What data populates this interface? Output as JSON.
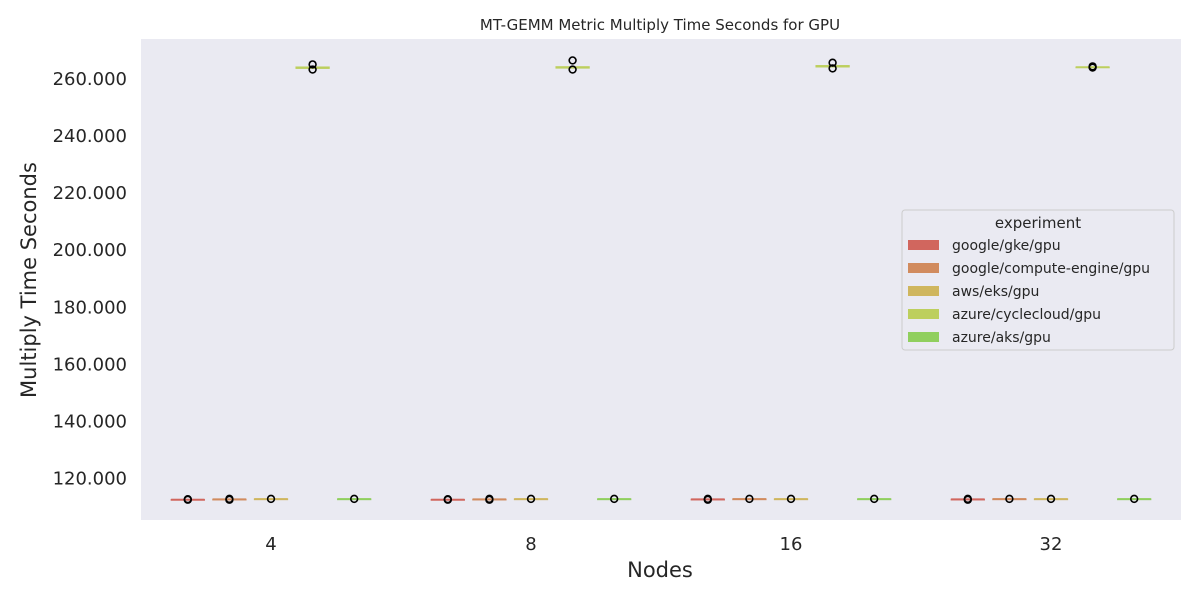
{
  "chart_data": {
    "type": "box",
    "title": "MT-GEMM Metric Multiply Time Seconds for GPU",
    "xlabel": "Nodes",
    "ylabel": "Multiply Time Seconds",
    "categories": [
      "4",
      "8",
      "16",
      "32"
    ],
    "ylim": [
      105.5,
      274
    ],
    "yticks": [
      120,
      140,
      160,
      180,
      200,
      220,
      240,
      260
    ],
    "ytick_labels": [
      "120.000",
      "140.000",
      "160.000",
      "180.000",
      "200.000",
      "220.000",
      "240.000",
      "260.000"
    ],
    "grid": false,
    "background": "#eaeaf2",
    "legend": {
      "title": "experiment",
      "position": "center-right"
    },
    "series": [
      {
        "name": "google/gke/gpu",
        "color": "#d1665e",
        "boxes": [
          {
            "category": "4",
            "median": 112.7,
            "q1": 112.7,
            "q3": 112.7,
            "outliers": [
              112.6,
              112.8
            ]
          },
          {
            "category": "8",
            "median": 112.7,
            "q1": 112.7,
            "q3": 112.7,
            "outliers": [
              112.6,
              112.8
            ]
          },
          {
            "category": "16",
            "median": 112.8,
            "q1": 112.8,
            "q3": 112.8,
            "outliers": [
              112.6,
              112.9
            ]
          },
          {
            "category": "32",
            "median": 112.8,
            "q1": 112.8,
            "q3": 112.8,
            "outliers": [
              112.6,
              112.9
            ]
          }
        ]
      },
      {
        "name": "google/compute-engine/gpu",
        "color": "#d18b5e",
        "boxes": [
          {
            "category": "4",
            "median": 112.8,
            "q1": 112.8,
            "q3": 112.8,
            "outliers": [
              112.6,
              112.9
            ]
          },
          {
            "category": "8",
            "median": 112.8,
            "q1": 112.8,
            "q3": 112.8,
            "outliers": [
              112.6,
              112.9
            ]
          },
          {
            "category": "16",
            "median": 112.9,
            "q1": 112.9,
            "q3": 112.9,
            "outliers": [
              112.9
            ]
          },
          {
            "category": "32",
            "median": 112.9,
            "q1": 112.9,
            "q3": 112.9,
            "outliers": [
              112.9
            ]
          }
        ]
      },
      {
        "name": "aws/eks/gpu",
        "color": "#cfb65e",
        "boxes": [
          {
            "category": "4",
            "median": 112.9,
            "q1": 112.9,
            "q3": 112.9,
            "outliers": [
              112.9
            ]
          },
          {
            "category": "8",
            "median": 112.9,
            "q1": 112.9,
            "q3": 112.9,
            "outliers": [
              112.9
            ]
          },
          {
            "category": "16",
            "median": 112.9,
            "q1": 112.9,
            "q3": 112.9,
            "outliers": [
              112.9
            ]
          },
          {
            "category": "32",
            "median": 112.9,
            "q1": 112.9,
            "q3": 112.9,
            "outliers": [
              112.9
            ]
          }
        ]
      },
      {
        "name": "azure/cyclecloud/gpu",
        "color": "#bdcf5e",
        "boxes": [
          {
            "category": "4",
            "median": 263.9,
            "q1": 263.7,
            "q3": 264.2,
            "outliers": [
              263.3,
              265.1
            ]
          },
          {
            "category": "8",
            "median": 264.0,
            "q1": 263.8,
            "q3": 264.3,
            "outliers": [
              263.3,
              266.5
            ]
          },
          {
            "category": "16",
            "median": 264.4,
            "q1": 264.2,
            "q3": 264.7,
            "outliers": [
              263.7,
              265.7
            ]
          },
          {
            "category": "32",
            "median": 264.2,
            "q1": 264.2,
            "q3": 264.2,
            "outliers": [
              264.0,
              264.4
            ]
          }
        ]
      },
      {
        "name": "azure/aks/gpu",
        "color": "#90cf5e",
        "boxes": [
          {
            "category": "4",
            "median": 112.9,
            "q1": 112.9,
            "q3": 112.9,
            "outliers": [
              112.9
            ]
          },
          {
            "category": "8",
            "median": 112.9,
            "q1": 112.9,
            "q3": 112.9,
            "outliers": [
              112.9
            ]
          },
          {
            "category": "16",
            "median": 112.9,
            "q1": 112.9,
            "q3": 112.9,
            "outliers": [
              112.9
            ]
          },
          {
            "category": "32",
            "median": 112.9,
            "q1": 112.9,
            "q3": 112.9,
            "outliers": [
              112.9
            ]
          }
        ]
      }
    ]
  }
}
